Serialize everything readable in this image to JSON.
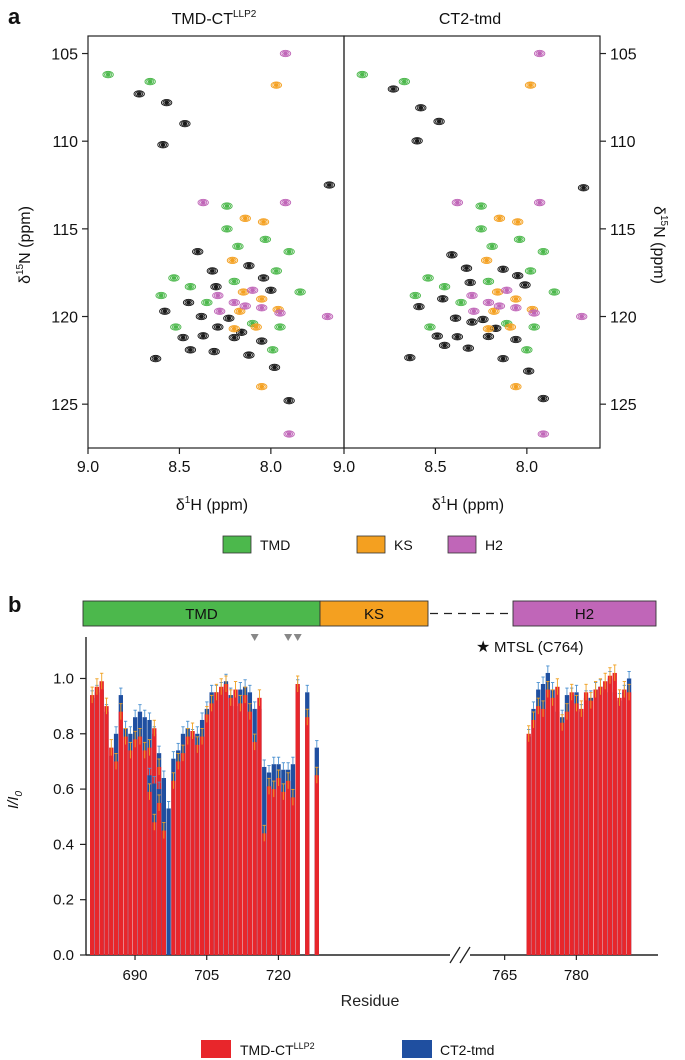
{
  "figure": {
    "panel_a_label": "a",
    "panel_b_label": "b"
  },
  "chart_data": [
    {
      "type": "scatter",
      "id": "nmr-spectra",
      "panels": [
        {
          "title_main": "TMD-CT",
          "title_sup": "LLP2"
        },
        {
          "title_main": "CT2-tmd",
          "title_sup": ""
        }
      ],
      "xlabel_main": "δ",
      "xlabel_sup": "1",
      "xlabel_rest": "H (ppm)",
      "ylabel_main": "δ",
      "ylabel_sup": "15",
      "ylabel_rest": "N (ppm)",
      "xlim": [
        9.0,
        7.6
      ],
      "ylim": [
        104,
        127.5
      ],
      "x_ticks": [
        "9.0",
        "8.5",
        "8.0"
      ],
      "y_ticks": [
        "105",
        "110",
        "115",
        "120",
        "125"
      ],
      "legend": [
        {
          "label": "TMD",
          "color": "#4cb84c"
        },
        {
          "label": "KS",
          "color": "#f4a020"
        },
        {
          "label": "H2",
          "color": "#c066b8"
        }
      ],
      "colors": {
        "black": "#1a1a1a",
        "TMD": "#4cb84c",
        "KS": "#f4a020",
        "H2": "#c066b8"
      },
      "peaks": {
        "TMD": [
          [
            8.89,
            106.2
          ],
          [
            8.66,
            106.6
          ],
          [
            8.24,
            113.7
          ],
          [
            8.24,
            115.0
          ],
          [
            8.03,
            115.6
          ],
          [
            7.97,
            117.4
          ],
          [
            7.9,
            116.3
          ],
          [
            8.53,
            117.8
          ],
          [
            8.44,
            118.3
          ],
          [
            8.35,
            119.2
          ],
          [
            8.6,
            118.8
          ],
          [
            8.2,
            118.0
          ],
          [
            8.1,
            120.4
          ],
          [
            7.99,
            121.9
          ],
          [
            8.18,
            116.0
          ],
          [
            8.52,
            120.6
          ],
          [
            7.84,
            118.6
          ],
          [
            7.95,
            120.6
          ]
        ],
        "KS": [
          [
            7.97,
            106.8
          ],
          [
            8.14,
            114.4
          ],
          [
            8.04,
            114.6
          ],
          [
            8.21,
            116.8
          ],
          [
            8.15,
            118.6
          ],
          [
            8.17,
            119.7
          ],
          [
            8.05,
            119.0
          ],
          [
            8.2,
            120.7
          ],
          [
            8.08,
            120.6
          ],
          [
            8.05,
            124.0
          ],
          [
            7.96,
            119.6
          ]
        ],
        "H2": [
          [
            7.92,
            105.0
          ],
          [
            8.37,
            113.5
          ],
          [
            7.92,
            113.5
          ],
          [
            8.29,
            118.8
          ],
          [
            8.28,
            119.7
          ],
          [
            8.14,
            119.4
          ],
          [
            8.05,
            119.5
          ],
          [
            7.95,
            119.8
          ],
          [
            7.69,
            120.0
          ],
          [
            8.1,
            118.5
          ],
          [
            7.9,
            126.7
          ],
          [
            8.2,
            119.2
          ]
        ],
        "black": [
          [
            8.72,
            107.3
          ],
          [
            8.57,
            107.8
          ],
          [
            8.47,
            109.0
          ],
          [
            8.59,
            110.2
          ],
          [
            7.68,
            112.5
          ],
          [
            8.4,
            116.3
          ],
          [
            8.32,
            117.4
          ],
          [
            8.12,
            117.1
          ],
          [
            8.04,
            117.8
          ],
          [
            8.45,
            119.2
          ],
          [
            8.38,
            120.0
          ],
          [
            8.29,
            120.6
          ],
          [
            8.2,
            121.2
          ],
          [
            8.05,
            121.4
          ],
          [
            8.44,
            121.9
          ],
          [
            8.31,
            122.0
          ],
          [
            8.12,
            122.2
          ],
          [
            7.98,
            122.9
          ],
          [
            8.58,
            119.7
          ],
          [
            8.3,
            118.3
          ],
          [
            8.48,
            121.2
          ],
          [
            7.9,
            124.8
          ],
          [
            8.23,
            120.1
          ],
          [
            8.63,
            122.4
          ],
          [
            8.37,
            121.1
          ],
          [
            8.16,
            120.9
          ],
          [
            8.0,
            118.5
          ]
        ]
      }
    },
    {
      "type": "bar",
      "id": "pre-intensity",
      "xlabel": "Residue",
      "ylabel_main": "I/I",
      "ylabel_sub": "0",
      "ylim": [
        0,
        1.15
      ],
      "y_ticks": [
        "0.0",
        "0.2",
        "0.4",
        "0.6",
        "0.8",
        "1.0"
      ],
      "x_tick_labels": [
        {
          "residue": 690,
          "label": "690"
        },
        {
          "residue": 705,
          "label": "705"
        },
        {
          "residue": 720,
          "label": "720"
        },
        {
          "residue": 765,
          "label": "765"
        },
        {
          "residue": 780,
          "label": "780"
        }
      ],
      "domains": [
        {
          "label": "TMD",
          "start": 680,
          "end": 712,
          "color": "#4cb84c"
        },
        {
          "label": "KS",
          "start": 712,
          "end": 727,
          "color": "#f4a020"
        },
        {
          "label": "H2",
          "start": 768,
          "end": 788,
          "color": "#c066b8"
        }
      ],
      "annotation": "MTSL (C764)",
      "triangle_residues": [
        715,
        722,
        724
      ],
      "legend": [
        {
          "label_main": "TMD-CT",
          "label_sup": "LLP2",
          "color": "#e8262b"
        },
        {
          "label_main": "CT2-tmd",
          "label_sup": "",
          "color": "#1f4fa0"
        }
      ],
      "series_colors": {
        "red": "#e8262b",
        "blue": "#1f4fa0",
        "red_err": "#f0a020",
        "blue_err": "#4a90d0"
      },
      "segments": [
        {
          "start": 681,
          "red": [
            0.94,
            0.97,
            0.99,
            0.9,
            0.75,
            0.7,
            0.88,
            0.79,
            0.74,
            0.78,
            0.79,
            0.74,
            0.75,
            0.82,
            0.68,
            0.45
          ],
          "blue": [
            0.93,
            0.95,
            0.96,
            0.88,
            0.72,
            0.8,
            0.94,
            0.82,
            0.8,
            0.86,
            0.88,
            0.86,
            0.85,
            0.8,
            0.73,
            0.55
          ]
        },
        {
          "start": 693,
          "red": [
            0.59,
            0.48,
            0.55,
            0.45,
            0.0,
            0.63,
            0.7,
            0.73,
            0.79,
            0.81,
            0.76,
            0.79,
            0.87,
            0.91,
            0.95,
            0.97,
            0.98,
            0.93,
            0.96,
            0.91,
            0.94,
            0.88,
            0.77,
            0.93
          ],
          "blue": [
            0.65,
            0.62,
            0.6,
            0.64,
            0.53,
            0.71,
            0.74,
            0.8,
            0.82,
            0.79,
            0.8,
            0.85,
            0.89,
            0.95,
            0.95,
            0.96,
            0.99,
            0.94,
            0.9,
            0.96,
            0.97,
            0.95,
            0.89,
            0.89
          ]
        },
        {
          "start": 717,
          "red": [
            0.44,
            0.61,
            0.6,
            0.64,
            0.59,
            0.63,
            0.57
          ],
          "blue": [
            0.68,
            0.66,
            0.69,
            0.69,
            0.67,
            0.67,
            0.69
          ]
        },
        {
          "start": 724,
          "red": [
            0.98,
            0.0,
            0.86,
            0.0,
            0.65
          ],
          "blue": [
            0.97,
            0.0,
            0.95,
            0.0,
            0.75
          ]
        },
        {
          "start": 770,
          "red": [
            0.8,
            0.85,
            0.9,
            0.89,
            0.96,
            0.93,
            0.97,
            0.84,
            0.88,
            0.95,
            0.91,
            0.89,
            0.95,
            0.92,
            0.96,
            0.97,
            0.99,
            1.01,
            1.02,
            0.93,
            0.96,
            0.95
          ],
          "blue": [
            0.79,
            0.89,
            0.96,
            0.98,
            1.02,
            0.96,
            0.88,
            0.86,
            0.94,
            0.94,
            0.95,
            0.88,
            0.93,
            0.93,
            0.96,
            0.97,
            0.95,
            1.0,
            0.95,
            0.92,
            0.95,
            1.0
          ]
        }
      ]
    }
  ]
}
